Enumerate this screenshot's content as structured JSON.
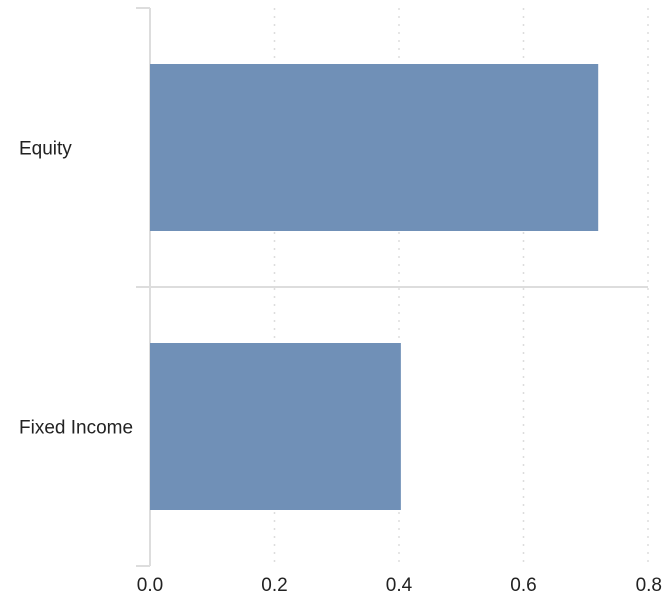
{
  "chart_data": {
    "type": "bar",
    "orientation": "horizontal",
    "categories": [
      "Equity",
      "Fixed Income"
    ],
    "values": [
      0.72,
      0.403
    ],
    "title": "",
    "xlabel": "",
    "ylabel": "",
    "xlim": [
      0,
      0.8
    ],
    "x_ticks": [
      "0.0",
      "0.2",
      "0.4",
      "0.6",
      "0.8"
    ],
    "grid": true,
    "bar_color": "#7090b7",
    "axis_color": "#dddddd",
    "grid_color": "#dddddd"
  }
}
